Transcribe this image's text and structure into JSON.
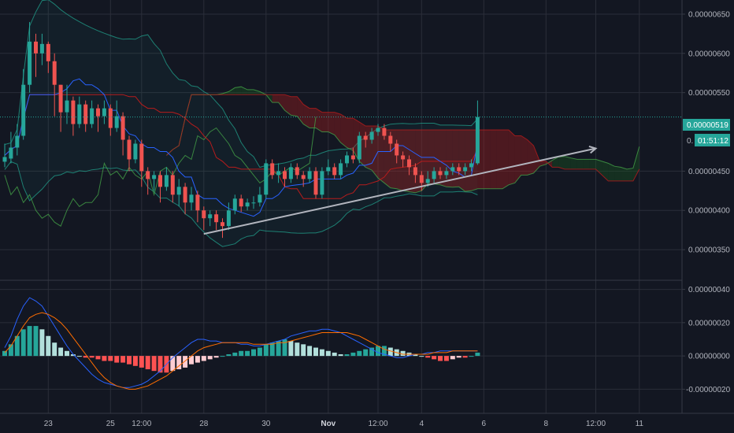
{
  "chart_data": [
    {
      "type": "candlestick",
      "panel": "price",
      "y_ticks": [
        "0.00000650",
        "0.00000600",
        "0.00000550",
        "0.00000450",
        "0.00000400",
        "0.00000350"
      ],
      "y_tick_values": [
        650,
        600,
        550,
        450,
        400,
        350
      ],
      "ylim": [
        312,
        668
      ],
      "last_price_label": "0.00000519",
      "last_price": 519,
      "countdown_label": "01:51:12",
      "countdown_hidden_prefix": "0.",
      "x_ticks": [
        {
          "label": "23",
          "t": 7
        },
        {
          "label": "25",
          "t": 17
        },
        {
          "label": "12:00",
          "t": 22
        },
        {
          "label": "28",
          "t": 32
        },
        {
          "label": "30",
          "t": 42
        },
        {
          "label": "Nov",
          "t": 52,
          "bold": true
        },
        {
          "label": "12:00",
          "t": 60
        },
        {
          "label": "4",
          "t": 67
        },
        {
          "label": "6",
          "t": 77
        },
        {
          "label": "8",
          "t": 87
        },
        {
          "label": "12:00",
          "t": 95
        },
        {
          "label": "11",
          "t": 102
        }
      ],
      "candles": [
        [
          462,
          468,
          485,
          455
        ],
        [
          466,
          480,
          500,
          460
        ],
        [
          480,
          495,
          510,
          470
        ],
        [
          495,
          560,
          580,
          490
        ],
        [
          560,
          615,
          640,
          550
        ],
        [
          615,
          600,
          625,
          570
        ],
        [
          600,
          612,
          625,
          585
        ],
        [
          612,
          590,
          615,
          575
        ],
        [
          590,
          560,
          600,
          520
        ],
        [
          560,
          525,
          560,
          500
        ],
        [
          525,
          540,
          560,
          510
        ],
        [
          540,
          510,
          545,
          495
        ],
        [
          510,
          535,
          545,
          505
        ],
        [
          535,
          510,
          540,
          500
        ],
        [
          510,
          530,
          540,
          505
        ],
        [
          530,
          520,
          535,
          500
        ],
        [
          520,
          530,
          540,
          510
        ],
        [
          530,
          505,
          535,
          495
        ],
        [
          505,
          520,
          540,
          500
        ],
        [
          520,
          490,
          525,
          470
        ],
        [
          490,
          465,
          495,
          450
        ],
        [
          465,
          485,
          490,
          460
        ],
        [
          485,
          450,
          490,
          430
        ],
        [
          450,
          440,
          455,
          420
        ],
        [
          440,
          445,
          450,
          425
        ],
        [
          445,
          430,
          450,
          410
        ],
        [
          430,
          445,
          455,
          425
        ],
        [
          445,
          420,
          450,
          410
        ],
        [
          420,
          430,
          440,
          405
        ],
        [
          430,
          410,
          435,
          395
        ],
        [
          410,
          420,
          430,
          400
        ],
        [
          420,
          400,
          425,
          385
        ],
        [
          400,
          390,
          405,
          375
        ],
        [
          390,
          395,
          400,
          380
        ],
        [
          395,
          385,
          400,
          375
        ],
        [
          385,
          380,
          390,
          365
        ],
        [
          380,
          400,
          410,
          375
        ],
        [
          400,
          415,
          420,
          395
        ],
        [
          415,
          405,
          420,
          398
        ],
        [
          405,
          410,
          415,
          400
        ],
        [
          410,
          410,
          418,
          402
        ],
        [
          410,
          420,
          430,
          405
        ],
        [
          420,
          460,
          465,
          415
        ],
        [
          460,
          445,
          465,
          440
        ],
        [
          445,
          450,
          460,
          435
        ],
        [
          450,
          440,
          455,
          430
        ],
        [
          440,
          455,
          460,
          435
        ],
        [
          455,
          445,
          460,
          440
        ],
        [
          445,
          440,
          450,
          430
        ],
        [
          440,
          450,
          455,
          435
        ],
        [
          450,
          420,
          455,
          415
        ],
        [
          420,
          450,
          455,
          415
        ],
        [
          450,
          455,
          465,
          445
        ],
        [
          455,
          445,
          460,
          440
        ],
        [
          445,
          460,
          465,
          440
        ],
        [
          460,
          470,
          475,
          455
        ],
        [
          470,
          465,
          480,
          460
        ],
        [
          465,
          495,
          500,
          460
        ],
        [
          495,
          490,
          500,
          480
        ],
        [
          490,
          500,
          505,
          485
        ],
        [
          500,
          505,
          510,
          495
        ],
        [
          505,
          495,
          510,
          490
        ],
        [
          495,
          485,
          500,
          475
        ],
        [
          485,
          470,
          490,
          460
        ],
        [
          470,
          465,
          475,
          455
        ],
        [
          465,
          455,
          470,
          445
        ],
        [
          455,
          445,
          460,
          435
        ],
        [
          445,
          435,
          450,
          425
        ],
        [
          435,
          440,
          450,
          430
        ],
        [
          440,
          450,
          455,
          435
        ],
        [
          450,
          445,
          455,
          440
        ],
        [
          445,
          450,
          455,
          440
        ],
        [
          450,
          455,
          460,
          445
        ],
        [
          455,
          450,
          460,
          445
        ],
        [
          450,
          455,
          460,
          445
        ],
        [
          455,
          460,
          465,
          450
        ],
        [
          460,
          519,
          540,
          458
        ]
      ],
      "trendline": {
        "from": [
          32,
          370
        ],
        "to": [
          95,
          479
        ]
      }
    },
    {
      "type": "macd",
      "panel": "oscillator",
      "y_ticks": [
        "0.00000040",
        "0.00000020",
        "0.00000000",
        "-0.00000020"
      ],
      "y_tick_values": [
        40,
        20,
        0,
        -20
      ],
      "ylim": [
        -34,
        45
      ],
      "histogram": [
        3,
        7,
        12,
        16,
        18,
        18,
        16,
        12,
        8,
        5,
        3,
        1,
        0,
        -1,
        -1,
        -2,
        -3,
        -3,
        -4,
        -4,
        -5,
        -6,
        -7,
        -8,
        -9,
        -10,
        -10,
        -9,
        -8,
        -7,
        -5,
        -4,
        -3,
        -2,
        -1,
        0,
        1,
        2,
        3,
        3,
        4,
        5,
        7,
        8,
        9,
        10,
        9,
        8,
        7,
        6,
        5,
        4,
        3,
        2,
        1,
        1,
        2,
        3,
        4,
        5,
        6,
        6,
        5,
        4,
        3,
        2,
        1,
        0,
        -1,
        -2,
        -3,
        -3,
        -2,
        -1,
        -1,
        0,
        2
      ],
      "macd_line": [
        5,
        12,
        22,
        30,
        35,
        33,
        30,
        24,
        18,
        12,
        6,
        1,
        -3,
        -7,
        -11,
        -14,
        -16,
        -17,
        -18,
        -19,
        -19,
        -18,
        -17,
        -15,
        -12,
        -9,
        -5,
        -1,
        2,
        5,
        8,
        10,
        10,
        9,
        9,
        8,
        8,
        8,
        7,
        7,
        6,
        6,
        7,
        8,
        9,
        10,
        12,
        13,
        14,
        15,
        15,
        16,
        16,
        15,
        14,
        12,
        10,
        8,
        6,
        4,
        2,
        1,
        0,
        -1,
        -1,
        0,
        1,
        1,
        2,
        2,
        3,
        3,
        3,
        3,
        3,
        3,
        3
      ],
      "signal_line": [
        2,
        6,
        12,
        18,
        23,
        25,
        26,
        25,
        23,
        20,
        16,
        11,
        6,
        1,
        -4,
        -9,
        -13,
        -16,
        -18,
        -19,
        -20,
        -20,
        -19,
        -18,
        -16,
        -14,
        -12,
        -9,
        -6,
        -3,
        0,
        3,
        5,
        6,
        7,
        8,
        8,
        8,
        8,
        8,
        7,
        7,
        7,
        7,
        8,
        8,
        9,
        10,
        11,
        12,
        13,
        14,
        14,
        14,
        14,
        14,
        13,
        12,
        10,
        8,
        6,
        4,
        3,
        2,
        1,
        1,
        1,
        1,
        1,
        2,
        2,
        2,
        3,
        3,
        3,
        3,
        3
      ]
    }
  ],
  "colors": {
    "background": "#131722",
    "up": "#26a69a",
    "down": "#ef5350",
    "grid": "#2a2e39",
    "bb": "#22ab94",
    "tenkan": "#2962ff",
    "kijun": "#b71c1c",
    "chikou": "#43a047",
    "cloud_bull": "#1b5e20",
    "cloud_bear": "#b71c1c",
    "macd": "#2962ff",
    "signal": "#ff6d00",
    "trendline": "#b2b5be",
    "price_line": "#26a69a",
    "text": "#b2b5be"
  }
}
